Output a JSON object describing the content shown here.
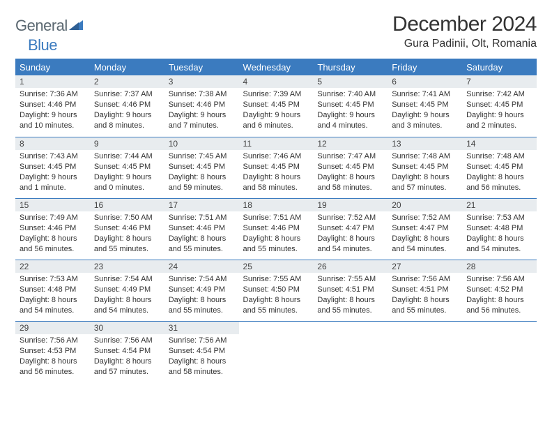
{
  "logo": {
    "general": "General",
    "blue": "Blue"
  },
  "title": "December 2024",
  "location": "Gura Padinii, Olt, Romania",
  "colors": {
    "header_bg": "#3b7bbf",
    "header_text": "#ffffff",
    "daynum_bg": "#e8ecef",
    "border": "#3b7bbf",
    "body_text": "#333333",
    "page_bg": "#ffffff"
  },
  "weekdays": [
    "Sunday",
    "Monday",
    "Tuesday",
    "Wednesday",
    "Thursday",
    "Friday",
    "Saturday"
  ],
  "days": {
    "1": {
      "sunrise": "Sunrise: 7:36 AM",
      "sunset": "Sunset: 4:46 PM",
      "daylight": "Daylight: 9 hours and 10 minutes."
    },
    "2": {
      "sunrise": "Sunrise: 7:37 AM",
      "sunset": "Sunset: 4:46 PM",
      "daylight": "Daylight: 9 hours and 8 minutes."
    },
    "3": {
      "sunrise": "Sunrise: 7:38 AM",
      "sunset": "Sunset: 4:46 PM",
      "daylight": "Daylight: 9 hours and 7 minutes."
    },
    "4": {
      "sunrise": "Sunrise: 7:39 AM",
      "sunset": "Sunset: 4:45 PM",
      "daylight": "Daylight: 9 hours and 6 minutes."
    },
    "5": {
      "sunrise": "Sunrise: 7:40 AM",
      "sunset": "Sunset: 4:45 PM",
      "daylight": "Daylight: 9 hours and 4 minutes."
    },
    "6": {
      "sunrise": "Sunrise: 7:41 AM",
      "sunset": "Sunset: 4:45 PM",
      "daylight": "Daylight: 9 hours and 3 minutes."
    },
    "7": {
      "sunrise": "Sunrise: 7:42 AM",
      "sunset": "Sunset: 4:45 PM",
      "daylight": "Daylight: 9 hours and 2 minutes."
    },
    "8": {
      "sunrise": "Sunrise: 7:43 AM",
      "sunset": "Sunset: 4:45 PM",
      "daylight": "Daylight: 9 hours and 1 minute."
    },
    "9": {
      "sunrise": "Sunrise: 7:44 AM",
      "sunset": "Sunset: 4:45 PM",
      "daylight": "Daylight: 9 hours and 0 minutes."
    },
    "10": {
      "sunrise": "Sunrise: 7:45 AM",
      "sunset": "Sunset: 4:45 PM",
      "daylight": "Daylight: 8 hours and 59 minutes."
    },
    "11": {
      "sunrise": "Sunrise: 7:46 AM",
      "sunset": "Sunset: 4:45 PM",
      "daylight": "Daylight: 8 hours and 58 minutes."
    },
    "12": {
      "sunrise": "Sunrise: 7:47 AM",
      "sunset": "Sunset: 4:45 PM",
      "daylight": "Daylight: 8 hours and 58 minutes."
    },
    "13": {
      "sunrise": "Sunrise: 7:48 AM",
      "sunset": "Sunset: 4:45 PM",
      "daylight": "Daylight: 8 hours and 57 minutes."
    },
    "14": {
      "sunrise": "Sunrise: 7:48 AM",
      "sunset": "Sunset: 4:45 PM",
      "daylight": "Daylight: 8 hours and 56 minutes."
    },
    "15": {
      "sunrise": "Sunrise: 7:49 AM",
      "sunset": "Sunset: 4:46 PM",
      "daylight": "Daylight: 8 hours and 56 minutes."
    },
    "16": {
      "sunrise": "Sunrise: 7:50 AM",
      "sunset": "Sunset: 4:46 PM",
      "daylight": "Daylight: 8 hours and 55 minutes."
    },
    "17": {
      "sunrise": "Sunrise: 7:51 AM",
      "sunset": "Sunset: 4:46 PM",
      "daylight": "Daylight: 8 hours and 55 minutes."
    },
    "18": {
      "sunrise": "Sunrise: 7:51 AM",
      "sunset": "Sunset: 4:46 PM",
      "daylight": "Daylight: 8 hours and 55 minutes."
    },
    "19": {
      "sunrise": "Sunrise: 7:52 AM",
      "sunset": "Sunset: 4:47 PM",
      "daylight": "Daylight: 8 hours and 54 minutes."
    },
    "20": {
      "sunrise": "Sunrise: 7:52 AM",
      "sunset": "Sunset: 4:47 PM",
      "daylight": "Daylight: 8 hours and 54 minutes."
    },
    "21": {
      "sunrise": "Sunrise: 7:53 AM",
      "sunset": "Sunset: 4:48 PM",
      "daylight": "Daylight: 8 hours and 54 minutes."
    },
    "22": {
      "sunrise": "Sunrise: 7:53 AM",
      "sunset": "Sunset: 4:48 PM",
      "daylight": "Daylight: 8 hours and 54 minutes."
    },
    "23": {
      "sunrise": "Sunrise: 7:54 AM",
      "sunset": "Sunset: 4:49 PM",
      "daylight": "Daylight: 8 hours and 54 minutes."
    },
    "24": {
      "sunrise": "Sunrise: 7:54 AM",
      "sunset": "Sunset: 4:49 PM",
      "daylight": "Daylight: 8 hours and 55 minutes."
    },
    "25": {
      "sunrise": "Sunrise: 7:55 AM",
      "sunset": "Sunset: 4:50 PM",
      "daylight": "Daylight: 8 hours and 55 minutes."
    },
    "26": {
      "sunrise": "Sunrise: 7:55 AM",
      "sunset": "Sunset: 4:51 PM",
      "daylight": "Daylight: 8 hours and 55 minutes."
    },
    "27": {
      "sunrise": "Sunrise: 7:56 AM",
      "sunset": "Sunset: 4:51 PM",
      "daylight": "Daylight: 8 hours and 55 minutes."
    },
    "28": {
      "sunrise": "Sunrise: 7:56 AM",
      "sunset": "Sunset: 4:52 PM",
      "daylight": "Daylight: 8 hours and 56 minutes."
    },
    "29": {
      "sunrise": "Sunrise: 7:56 AM",
      "sunset": "Sunset: 4:53 PM",
      "daylight": "Daylight: 8 hours and 56 minutes."
    },
    "30": {
      "sunrise": "Sunrise: 7:56 AM",
      "sunset": "Sunset: 4:54 PM",
      "daylight": "Daylight: 8 hours and 57 minutes."
    },
    "31": {
      "sunrise": "Sunrise: 7:56 AM",
      "sunset": "Sunset: 4:54 PM",
      "daylight": "Daylight: 8 hours and 58 minutes."
    }
  },
  "grid": [
    [
      1,
      2,
      3,
      4,
      5,
      6,
      7
    ],
    [
      8,
      9,
      10,
      11,
      12,
      13,
      14
    ],
    [
      15,
      16,
      17,
      18,
      19,
      20,
      21
    ],
    [
      22,
      23,
      24,
      25,
      26,
      27,
      28
    ],
    [
      29,
      30,
      31,
      null,
      null,
      null,
      null
    ]
  ]
}
